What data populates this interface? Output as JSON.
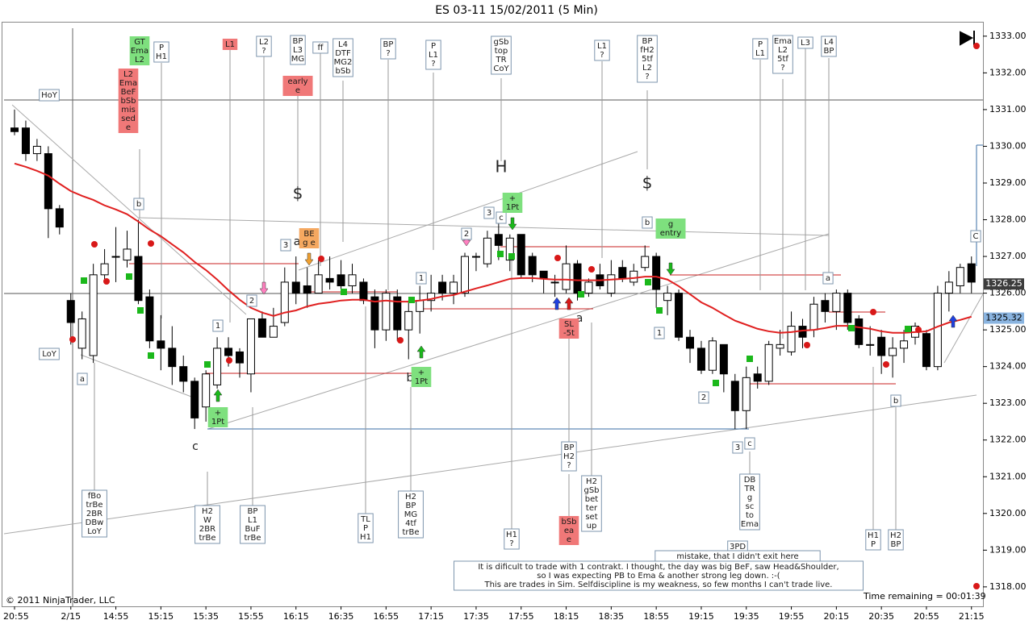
{
  "chart_data": {
    "type": "candlestick",
    "title": "ES 03-11  15/02/2011 (5 Min)",
    "categories": [
      "20:55",
      null,
      null,
      null,
      null,
      "2/15",
      null,
      null,
      null,
      "14:55",
      null,
      null,
      null,
      "15:15",
      null,
      null,
      null,
      "15:35",
      null,
      null,
      null,
      "15:55",
      null,
      null,
      null,
      "16:15",
      null,
      null,
      null,
      "16:35",
      null,
      null,
      null,
      "16:55",
      null,
      null,
      null,
      "17:15",
      null,
      null,
      null,
      "17:35",
      null,
      null,
      null,
      "17:55",
      null,
      null,
      null,
      "18:15",
      null,
      null,
      null,
      "18:35",
      null,
      null,
      null,
      "18:55",
      null,
      null,
      null,
      "19:15",
      null,
      null,
      null,
      "19:35",
      null,
      null,
      null,
      "19:55",
      null,
      null,
      null,
      "20:15",
      null,
      null,
      null,
      "20:35",
      null,
      null,
      null,
      "20:55",
      null,
      null,
      null,
      "21:15"
    ],
    "open": [
      1330.5,
      1330.5,
      1329.8,
      1329.8,
      1328.3,
      1325.8,
      1324.5,
      1324.3,
      1326.5,
      1327.0,
      1326.9,
      1327.0,
      1325.9,
      1324.7,
      1324.5,
      1324.0,
      1323.6,
      1322.9,
      1323.5,
      1324.5,
      1324.4,
      1323.8,
      1325.3,
      1324.8,
      1325.2,
      1326.3,
      1326.2,
      1326.0,
      1326.4,
      1326.5,
      1326.2,
      1326.3,
      1325.9,
      1325.0,
      1325.9,
      1325.0,
      1325.5,
      1325.8,
      1326.3,
      1326.0,
      1326.0,
      1327.0,
      1326.8,
      1327.6,
      1326.9,
      1327.6,
      1327.0,
      1326.6,
      1326.3,
      1326.1,
      1326.8,
      1326.0,
      1326.5,
      1326.0,
      1326.7,
      1326.3,
      1326.7,
      1327.0,
      1325.8,
      1326.0,
      1324.8,
      1324.5,
      1323.9,
      1324.6,
      1323.6,
      1322.8,
      1323.8,
      1323.6,
      1324.5,
      1324.4,
      1325.1,
      1325.0,
      1325.8,
      1325.5,
      1326.0,
      1325.3,
      1324.6,
      1324.8,
      1324.3,
      1324.5,
      1324.8,
      1324.9,
      1324.0,
      1326.0,
      1326.2,
      1326.8
    ],
    "high": [
      1331,
      1330.7,
      1330.2,
      1330,
      1328.4,
      1326.0,
      1325.5,
      1326.8,
      1327.2,
      1327.8,
      1327.7,
      1328.0,
      1326.1,
      1325.4,
      1325.1,
      1324.3,
      1323.7,
      1323.9,
      1324.8,
      1324.8,
      1324.5,
      1325.3,
      1325.5,
      1325.6,
      1326.7,
      1327.0,
      1326.7,
      1326.9,
      1327.0,
      1326.9,
      1326.8,
      1326.4,
      1326.1,
      1326.1,
      1326.1,
      1325.8,
      1326.2,
      1326.5,
      1326.5,
      1326.5,
      1327.1,
      1327.1,
      1327.7,
      1327.9,
      1327.6,
      1327.6,
      1327.1,
      1326.6,
      1326.5,
      1327.3,
      1326.9,
      1326.4,
      1326.8,
      1326.9,
      1326.9,
      1326.8,
      1327.3,
      1327.1,
      1326.2,
      1326.1,
      1325.0,
      1324.7,
      1324.8,
      1324.6,
      1323.8,
      1324.0,
      1324.0,
      1324.7,
      1325.0,
      1325.5,
      1325.3,
      1325.9,
      1326.0,
      1326.1,
      1326.1,
      1325.4,
      1325.1,
      1325.0,
      1324.8,
      1325.0,
      1325.2,
      1325.0,
      1326.2,
      1326.6,
      1326.8,
      1327.0
    ],
    "low": [
      1330.3,
      1329.6,
      1329.6,
      1327.5,
      1327.6,
      1324.6,
      1324.2,
      1324.1,
      1326.3,
      1326.3,
      1326.7,
      1325.7,
      1324.5,
      1323.9,
      1323.5,
      1323.3,
      1322.3,
      1322.5,
      1323.4,
      1324.0,
      1323.7,
      1323.3,
      1324.8,
      1324.8,
      1325.1,
      1325.7,
      1325.6,
      1326.0,
      1326.1,
      1326.0,
      1326.0,
      1325.7,
      1324.5,
      1324.7,
      1324.7,
      1324.2,
      1324.9,
      1325.5,
      1325.8,
      1325.7,
      1325.9,
      1326.6,
      1326.7,
      1326.9,
      1326.6,
      1326.4,
      1326.3,
      1326.0,
      1325.9,
      1326.0,
      1325.8,
      1325.9,
      1326.1,
      1325.9,
      1326.3,
      1326.2,
      1326.6,
      1325.6,
      1325.4,
      1324.7,
      1324.1,
      1323.8,
      1323.8,
      1323.3,
      1322.3,
      1322.3,
      1323.4,
      1323.5,
      1324.3,
      1324.3,
      1324.5,
      1324.8,
      1325.2,
      1325.0,
      1325.0,
      1324.5,
      1324.3,
      1323.8,
      1323.7,
      1324.1,
      1324.6,
      1323.9,
      1323.9,
      1325.5,
      1326.0,
      1326.0
    ],
    "close": [
      1330.4,
      1329.8,
      1330.0,
      1328.3,
      1327.8,
      1325.2,
      1325.3,
      1326.5,
      1326.8,
      1327.0,
      1327.2,
      1325.8,
      1324.7,
      1324.5,
      1324.0,
      1323.6,
      1322.6,
      1323.8,
      1324.5,
      1324.3,
      1324.1,
      1325.3,
      1324.8,
      1325.1,
      1326.3,
      1326.0,
      1326.0,
      1326.5,
      1326.3,
      1326.2,
      1326.5,
      1325.8,
      1325.0,
      1326.0,
      1325.0,
      1325.5,
      1325.8,
      1326.0,
      1326.0,
      1326.3,
      1327.0,
      1327.0,
      1327.5,
      1327.3,
      1327.5,
      1326.5,
      1326.5,
      1326.4,
      1326.3,
      1326.8,
      1326.0,
      1326.3,
      1326.2,
      1326.5,
      1326.4,
      1326.6,
      1327.0,
      1326.1,
      1326.0,
      1324.8,
      1324.5,
      1323.9,
      1324.7,
      1323.8,
      1322.8,
      1323.7,
      1323.6,
      1324.6,
      1324.6,
      1325.1,
      1324.8,
      1325.7,
      1325.5,
      1326.0,
      1325.2,
      1324.6,
      1324.6,
      1324.3,
      1324.5,
      1324.7,
      1325.1,
      1324.0,
      1326.0,
      1326.3,
      1326.7,
      1326.3
    ],
    "ema": {
      "color": "#e02020",
      "values": [
        1329.53,
        1329.44,
        1329.33,
        1329.2,
        1328.98,
        1328.78,
        1328.65,
        1328.54,
        1328.39,
        1328.28,
        1328.15,
        1327.95,
        1327.73,
        1327.55,
        1327.33,
        1327.11,
        1326.85,
        1326.63,
        1326.37,
        1326.08,
        1325.82,
        1325.6,
        1325.47,
        1325.38,
        1325.47,
        1325.53,
        1325.64,
        1325.71,
        1325.75,
        1325.8,
        1325.82,
        1325.82,
        1325.77,
        1325.8,
        1325.77,
        1325.77,
        1325.8,
        1325.84,
        1325.91,
        1325.95,
        1326.04,
        1326.13,
        1326.21,
        1326.3,
        1326.39,
        1326.41,
        1326.41,
        1326.39,
        1326.37,
        1326.37,
        1326.35,
        1326.35,
        1326.35,
        1326.37,
        1326.39,
        1326.41,
        1326.45,
        1326.45,
        1326.37,
        1326.19,
        1325.97,
        1325.75,
        1325.6,
        1325.42,
        1325.25,
        1325.14,
        1325.03,
        1324.96,
        1324.92,
        1324.94,
        1324.98,
        1325.0,
        1325.05,
        1325.11,
        1325.11,
        1325.07,
        1325.03,
        1324.96,
        1324.92,
        1324.92,
        1324.94,
        1324.96,
        1325.09,
        1325.2,
        1325.27,
        1325.36
      ]
    },
    "ylim": [
      1317.47,
      1333.37
    ],
    "yticks": [
      {
        "value": 1318,
        "label": "1318.00"
      },
      {
        "value": 1319,
        "label": "1319.00"
      },
      {
        "value": 1320,
        "label": "1320.00"
      },
      {
        "value": 1321,
        "label": "1321.00"
      },
      {
        "value": 1322,
        "label": "1322.00"
      },
      {
        "value": 1323,
        "label": "1323.00"
      },
      {
        "value": 1324,
        "label": "1324.00"
      },
      {
        "value": 1325,
        "label": "1325.00"
      },
      {
        "value": 1326,
        "label": "1326.00"
      },
      {
        "value": 1327,
        "label": "1327.00"
      },
      {
        "value": 1328,
        "label": "1328.00"
      },
      {
        "value": 1329,
        "label": "1329.00"
      },
      {
        "value": 1330,
        "label": "1330.00"
      },
      {
        "value": 1331,
        "label": "1331.00"
      },
      {
        "value": 1332,
        "label": "1332.00"
      },
      {
        "value": 1333,
        "label": "1333.00"
      }
    ],
    "price_markers": [
      1326.25,
      1325.32
    ],
    "annotations": [
      [
        "GT",
        "Ema",
        "L2"
      ],
      [
        "L2",
        "Ema",
        "BeF",
        "bSb",
        "mis",
        "sed",
        "e"
      ],
      [
        "P",
        "H1"
      ],
      [
        "L1"
      ],
      [
        "L2",
        "?"
      ],
      [
        "BP",
        "L3",
        "MG"
      ],
      [
        "ff"
      ],
      [
        "L4",
        "DTF",
        "MG2",
        "bSb"
      ],
      [
        "early",
        "e"
      ],
      [
        "BP",
        "?"
      ],
      [
        "P",
        "L1",
        "?"
      ],
      [
        "gSb",
        "top",
        "TR",
        "CoY"
      ],
      [
        "L1",
        "?"
      ],
      [
        "BP",
        "fH2",
        "5tf",
        "L2",
        "?"
      ],
      [
        "P",
        "L1"
      ],
      [
        "Ema",
        "L2",
        "5tf",
        "?"
      ],
      [
        "L3"
      ],
      [
        "L4",
        "BP"
      ],
      [
        "HoY"
      ],
      [
        "LoY"
      ],
      [
        "$"
      ],
      [
        "$"
      ],
      [
        "H"
      ],
      [
        "b"
      ],
      [
        "b"
      ],
      [
        "b"
      ],
      [
        "b"
      ],
      [
        "a"
      ],
      [
        "a"
      ],
      [
        "a"
      ],
      [
        "a"
      ],
      [
        "c"
      ],
      [
        "c"
      ],
      [
        "c"
      ],
      [
        "C"
      ],
      [
        "3"
      ],
      [
        "3"
      ],
      [
        "3"
      ],
      [
        "2"
      ],
      [
        "1"
      ],
      [
        "2"
      ],
      [
        "1"
      ],
      [
        "1"
      ],
      [
        "2"
      ],
      [
        "BE",
        "g e"
      ],
      [
        "+",
        "1Pt"
      ],
      [
        "+",
        "1Pt"
      ],
      [
        "+",
        "1Pt"
      ],
      [
        "g",
        "entry"
      ],
      [
        "SL",
        "-5t"
      ],
      [
        "fBo",
        "trBe",
        "2BR",
        "DBw",
        "LoY"
      ],
      [
        "H2",
        "W",
        "2BR",
        "trBe"
      ],
      [
        "BP",
        "L1",
        "BuF",
        "trBe"
      ],
      [
        "TL",
        "P",
        "H1"
      ],
      [
        "H2",
        "BP",
        "MG",
        "4tf",
        "trBe"
      ],
      [
        "H1",
        "?"
      ],
      [
        "BP",
        "H2",
        "?"
      ],
      [
        "H2",
        "gSb",
        "bet",
        "ter",
        "set",
        "up"
      ],
      [
        "bSb",
        "ea",
        "e"
      ],
      [
        "DB",
        "TR",
        "g",
        "sc",
        "to",
        "Ema"
      ],
      [
        "3PD"
      ],
      [
        "H1",
        "P"
      ],
      [
        "H2",
        "BP"
      ],
      [
        "mistake, that I didn't exit here"
      ],
      [
        "It is dificult to trade with 1 contrakt. I thought, the day was big BeF, saw Head&Shoulder,",
        "so I was expecting PB to Ema & another strong leg down. :-(",
        "This are trades in Sim. Selfdiscipline is my weakness, so few months I can't trade live."
      ]
    ],
    "copyright": "© 2011 NinjaTrader, LLC",
    "time_remaining": "Time remaining = 00:01:39"
  }
}
